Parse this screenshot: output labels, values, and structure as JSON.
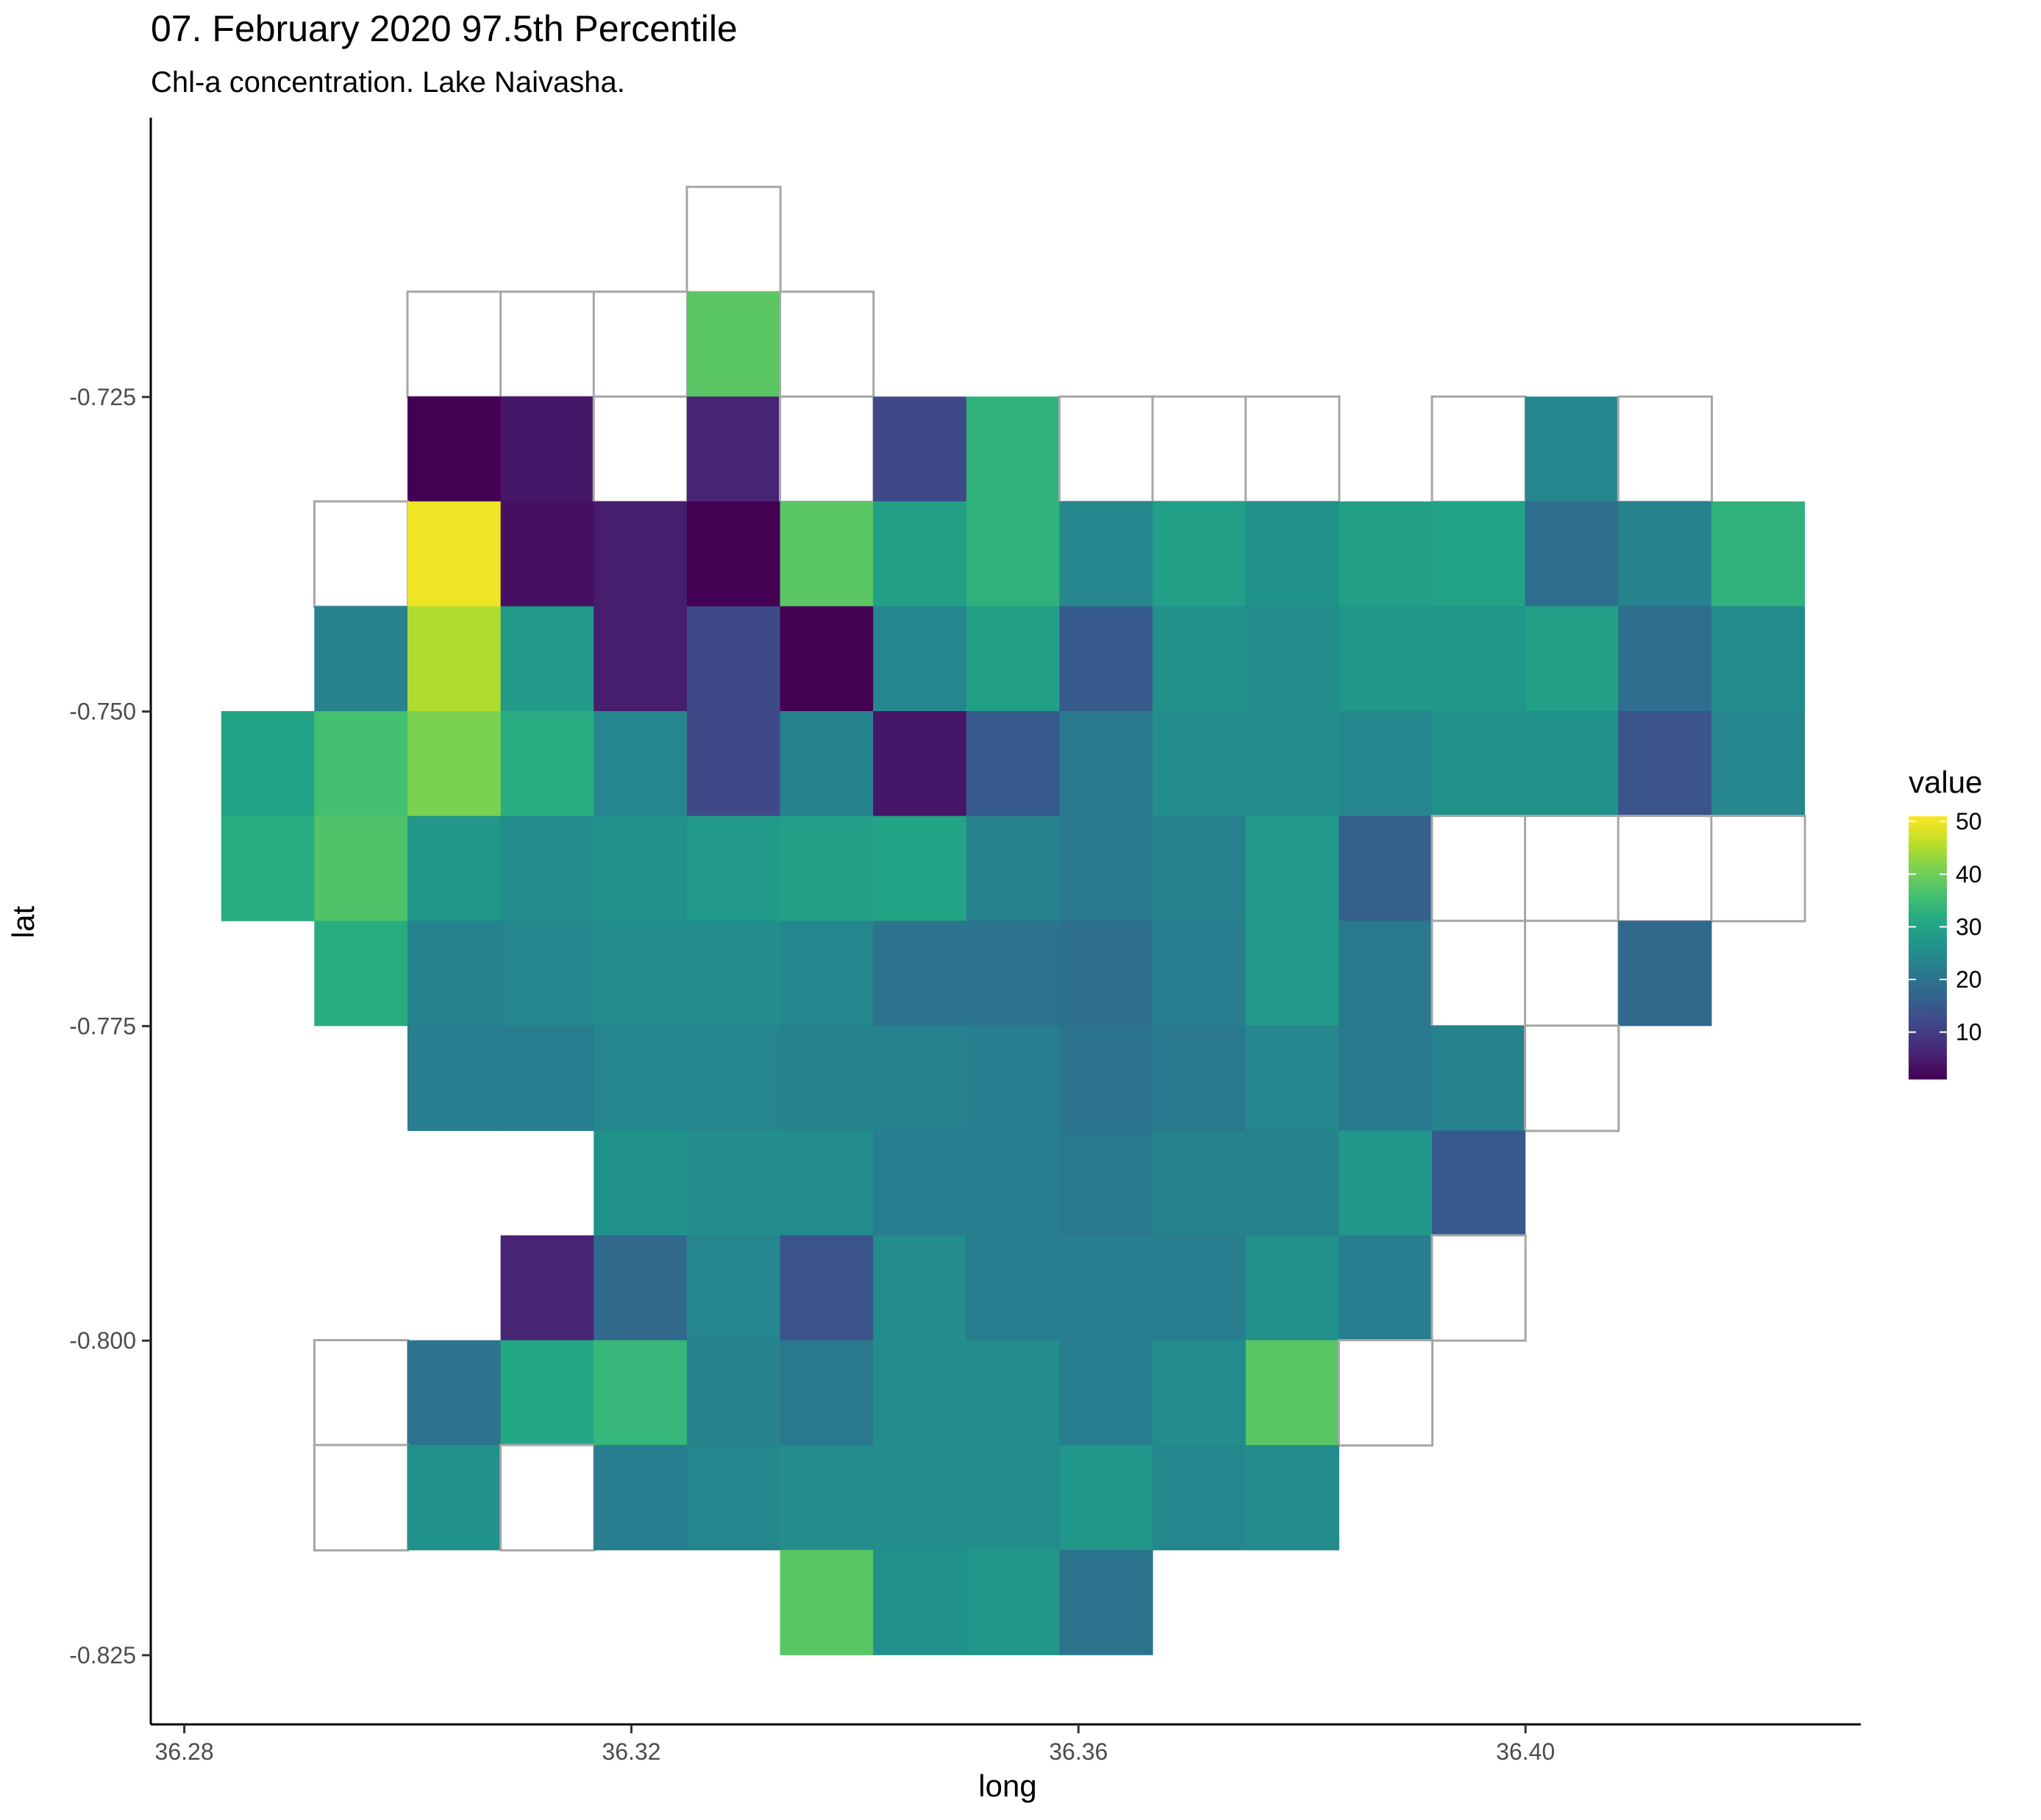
{
  "chart_data": {
    "type": "heatmap",
    "title": "07. February 2020 97.5th Percentile",
    "subtitle": "Chl-a concentration. Lake Naivasha.",
    "xlabel": "long",
    "ylabel": "lat",
    "xlim": [
      36.277,
      36.43
    ],
    "ylim": [
      -0.8305,
      -0.7028
    ],
    "x_ticks": [
      "36.28",
      "36.32",
      "36.36",
      "36.40"
    ],
    "x_tick_values": [
      36.28,
      36.32,
      36.36,
      36.4
    ],
    "y_ticks": [
      "-0.725",
      "-0.750",
      "-0.775",
      "-0.800",
      "-0.825"
    ],
    "y_tick_values": [
      -0.725,
      -0.75,
      -0.775,
      -0.8,
      -0.825
    ],
    "cell_x_start": 36.2833,
    "cell_dx": 0.008333,
    "cell_y_start": -0.7083,
    "cell_dy": 0.008333,
    "colorscale": "viridis",
    "legend_title": "value",
    "legend_ticks": [
      "10",
      "20",
      "30",
      "40",
      "50"
    ],
    "legend_tick_values": [
      10,
      20,
      30,
      40,
      50
    ],
    "legend_range": [
      1,
      51
    ],
    "legend_position": "right",
    "grid": false,
    "outline_color": "#a6a6a6",
    "grid_values": [
      [
        null,
        null,
        null,
        null,
        null,
        "O",
        null,
        null,
        null,
        null,
        null,
        null,
        null,
        null,
        null,
        null,
        null,
        null
      ],
      [
        null,
        null,
        "O",
        "O",
        "O",
        38,
        "O",
        null,
        null,
        null,
        null,
        null,
        null,
        null,
        null,
        null,
        null,
        null
      ],
      [
        null,
        null,
        1,
        4,
        "O",
        6,
        "O",
        12,
        33,
        "O",
        "O",
        "O",
        null,
        "O",
        24,
        "O",
        null,
        null
      ],
      [
        null,
        "O",
        50,
        3,
        5,
        1,
        38,
        29,
        33,
        24,
        29,
        26,
        29,
        30,
        19,
        23,
        33,
        null
      ],
      [
        null,
        23,
        45,
        28,
        5,
        12,
        1,
        24,
        29,
        15,
        26,
        25,
        27,
        27,
        29,
        19,
        25,
        null
      ],
      [
        30,
        36,
        41,
        32,
        24,
        12,
        23,
        4,
        15,
        21,
        25,
        25,
        24,
        26,
        26,
        14,
        24,
        null
      ],
      [
        32,
        37,
        27,
        25,
        26,
        28,
        29,
        30,
        23,
        21,
        23,
        28,
        16,
        "O",
        "O",
        "O",
        "O",
        null
      ],
      [
        null,
        32,
        23,
        24,
        25,
        25,
        24,
        20,
        20,
        19,
        22,
        28,
        21,
        "O",
        "O",
        18,
        null,
        null
      ],
      [
        null,
        null,
        22,
        22,
        24,
        24,
        23,
        23,
        22,
        20,
        21,
        24,
        21,
        23,
        "O",
        null,
        null,
        null
      ],
      [
        null,
        null,
        null,
        null,
        26,
        25,
        25,
        22,
        22,
        21,
        23,
        23,
        27,
        15,
        null,
        null,
        null,
        null
      ],
      [
        null,
        null,
        null,
        6,
        18,
        24,
        14,
        25,
        22,
        22,
        22,
        26,
        22,
        "O",
        null,
        null,
        null,
        null
      ],
      [
        null,
        "O",
        20,
        31,
        34,
        23,
        21,
        25,
        25,
        22,
        25,
        38,
        "O",
        null,
        null,
        null,
        null,
        null
      ],
      [
        null,
        "O",
        26,
        "O",
        22,
        24,
        25,
        25,
        25,
        27,
        24,
        25,
        null,
        null,
        null,
        null,
        null,
        null
      ],
      [
        null,
        null,
        null,
        null,
        null,
        null,
        38,
        26,
        27,
        20,
        null,
        null,
        null,
        null,
        null,
        null,
        null,
        null
      ]
    ]
  }
}
